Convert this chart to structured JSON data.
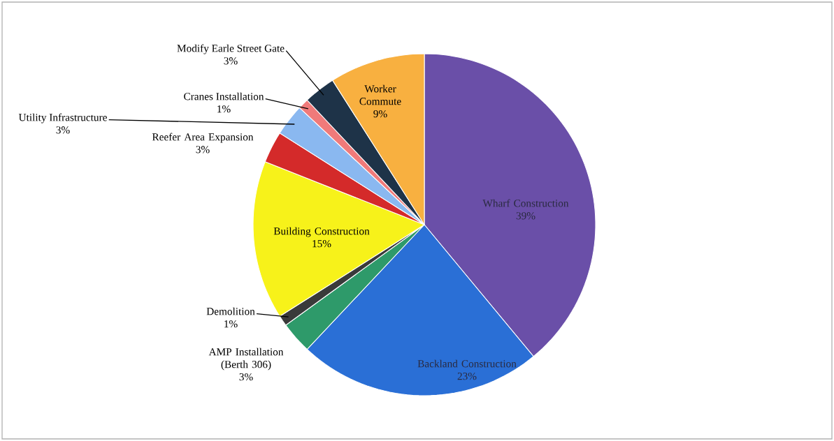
{
  "chart_data": {
    "type": "pie",
    "categories": [
      "Wharf Construction",
      "Backland Construction",
      "AMP Installation (Berth 306)",
      "Demolition",
      "Building Construction",
      "Reefer Area Expansion",
      "Utility Infrastructure",
      "Cranes Installation",
      "Modify Earle Street Gate",
      "Worker Commute"
    ],
    "values": [
      39,
      23,
      3,
      1,
      15,
      3,
      3,
      1,
      3,
      9
    ],
    "colors": [
      "#6a4fa8",
      "#2a6fd6",
      "#2e9a6a",
      "#3a3a3a",
      "#f7f21a",
      "#d42a2a",
      "#8ab8f0",
      "#f07a7a",
      "#1e3348",
      "#f8b040"
    ],
    "value_labels": [
      "39%",
      "23%",
      "3%",
      "1%",
      "15%",
      "3%",
      "3%",
      "1%",
      "3%",
      "9%"
    ]
  }
}
